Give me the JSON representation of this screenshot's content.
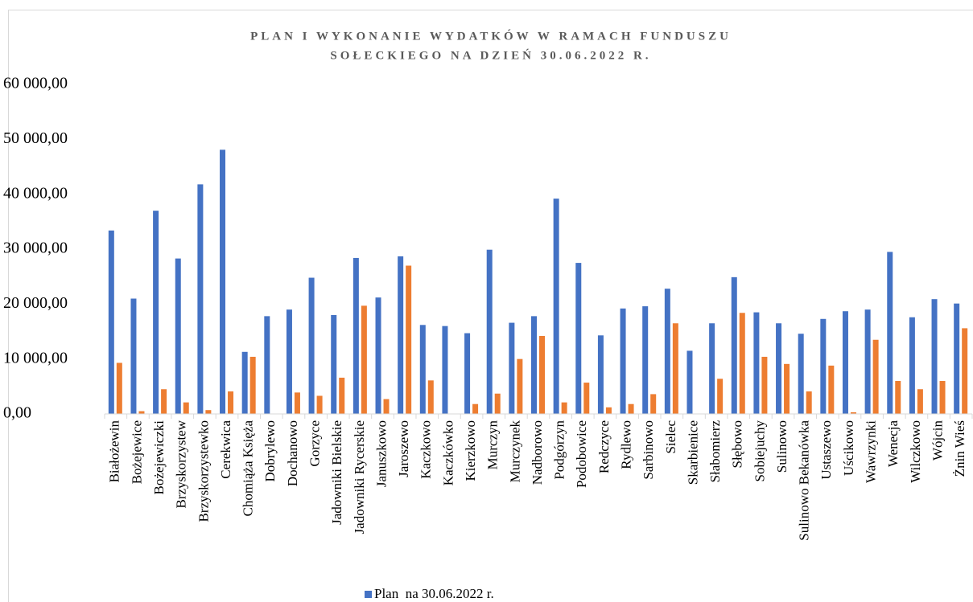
{
  "chart_data": {
    "type": "bar",
    "title": [
      "PLAN I WYKONANIE WYDATKÓW W RAMACH FUNDUSZU",
      "SOŁECKIEGO NA DZIEŃ 30.06.2022 R."
    ],
    "categories": [
      "Białożewin",
      "Bożejewice",
      "Bożejewiczki",
      "Brzyskorzystew",
      "Brzyskorzystewko",
      "Cerekwica",
      "Chomiąża Księża",
      "Dobrylewo",
      "Dochanowo",
      "Gorzyce",
      "Jadowniki Bielskie",
      "Jadowniki Rycerskie",
      "Januszkowo",
      "Jaroszewo",
      "Kaczkowo",
      "Kaczkówko",
      "Kierzkowo",
      "Murczyn",
      "Murczynek",
      "Nadborowo",
      "Podgórzyn",
      "Podobowice",
      "Redczyce",
      "Rydlewo",
      "Sarbinowo",
      "Sielec",
      "Skarbienice",
      "Słabomierz",
      "Słębowo",
      "Sobiejuchy",
      "Sulinowo",
      "Sulinowo Bekanówka",
      "Ustaszewo",
      "Uścikowo",
      "Wawrzynki",
      "Wenecja",
      "Wilczkowo",
      "Wójcin",
      "Żnin Wieś"
    ],
    "series": [
      {
        "name": "Plan  na 30.06.2022 r.",
        "color": "#4472c4",
        "values": [
          33400,
          21000,
          37000,
          28300,
          41800,
          48100,
          11300,
          17800,
          19000,
          24800,
          18000,
          28400,
          21200,
          28700,
          16200,
          16000,
          14700,
          29900,
          16600,
          17800,
          39200,
          27500,
          14300,
          19200,
          19600,
          22800,
          11500,
          16500,
          24900,
          18500,
          16500,
          14600,
          17300,
          18700,
          19000,
          29500,
          17600,
          20900,
          20100
        ]
      },
      {
        "color": "#ed7d31",
        "values": [
          9300,
          500,
          4500,
          2100,
          700,
          4100,
          10400,
          0,
          3900,
          3300,
          6600,
          19700,
          2700,
          27000,
          6100,
          0,
          1800,
          3700,
          10000,
          14200,
          2100,
          5700,
          1200,
          1800,
          3600,
          16500,
          0,
          6400,
          18400,
          10400,
          9100,
          4100,
          8800,
          300,
          13500,
          6000,
          4500,
          6000,
          15600
        ]
      }
    ],
    "ylim": [
      0,
      60000
    ],
    "yticks": [
      {
        "value": 0,
        "label": "0,00"
      },
      {
        "value": 10000,
        "label": "10 000,00"
      },
      {
        "value": 20000,
        "label": "20 000,00"
      },
      {
        "value": 30000,
        "label": "30 000,00"
      },
      {
        "value": 40000,
        "label": "40 000,00"
      },
      {
        "value": 50000,
        "label": "50 000,00"
      },
      {
        "value": 60000,
        "label": "60 000,00"
      }
    ],
    "grid": false,
    "legend": "bottom"
  }
}
